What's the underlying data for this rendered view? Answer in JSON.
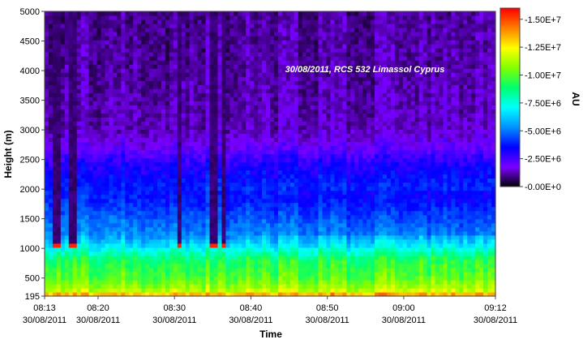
{
  "chart_data": {
    "type": "heatmap",
    "title": "",
    "annotation": "30/08/2011, RCS 532 Limassol Cyprus",
    "xlabel": "Time",
    "ylabel": "Height (m)",
    "colorbar_label": "AU",
    "ylim": [
      195,
      5000
    ],
    "y_ticks": [
      195,
      500,
      1000,
      1500,
      2000,
      2500,
      3000,
      3500,
      4000,
      4500,
      5000
    ],
    "x_ticks": [
      {
        "time": "08:13",
        "date": "30/08/2011"
      },
      {
        "time": "08:20",
        "date": "30/08/2011"
      },
      {
        "time": "08:30",
        "date": "30/08/2011"
      },
      {
        "time": "08:40",
        "date": "30/08/2011"
      },
      {
        "time": "08:50",
        "date": "30/08/2011"
      },
      {
        "time": "09:00",
        "date": "30/08/2011"
      },
      {
        "time": "09:12",
        "date": "30/08/2011"
      }
    ],
    "x_tick_minutes": [
      493,
      500,
      510,
      520,
      530,
      540,
      552
    ],
    "xlim_minutes": [
      493,
      552
    ],
    "colorbar_ticks": [
      {
        "value": 0,
        "label": "-0.00E+0"
      },
      {
        "value": 2500000,
        "label": "-2.50E+6"
      },
      {
        "value": 5000000,
        "label": "-5.00E+6"
      },
      {
        "value": 7500000,
        "label": "-7.50E+6"
      },
      {
        "value": 10000000,
        "label": "-1.00E+7"
      },
      {
        "value": 12500000,
        "label": "-1.25E+7"
      },
      {
        "value": 15000000,
        "label": "-1.50E+7"
      }
    ],
    "colorbar_range": [
      0,
      16000000
    ],
    "colorscale": [
      "#000000",
      "#7a00ff",
      "#0000ff",
      "#0090ff",
      "#00ffff",
      "#00ff70",
      "#80ff00",
      "#ffff00",
      "#ff8000",
      "#ff0000"
    ],
    "profile_levels": [
      {
        "height": 195,
        "value": 14500000
      },
      {
        "height": 300,
        "value": 11500000
      },
      {
        "height": 500,
        "value": 10200000
      },
      {
        "height": 800,
        "value": 9300000
      },
      {
        "height": 1000,
        "value": 7400000
      },
      {
        "height": 1200,
        "value": 5700000
      },
      {
        "height": 1500,
        "value": 5000000
      },
      {
        "height": 1800,
        "value": 4200000
      },
      {
        "height": 2100,
        "value": 3900000
      },
      {
        "height": 2400,
        "value": 3200000
      },
      {
        "height": 2700,
        "value": 2100000
      },
      {
        "height": 3000,
        "value": 1400000
      },
      {
        "height": 4000,
        "value": 1200000
      },
      {
        "height": 5000,
        "value": 1100000
      }
    ],
    "rain_streak_times": [
      494.5,
      496.8,
      510.6,
      515.2,
      516.4
    ]
  }
}
